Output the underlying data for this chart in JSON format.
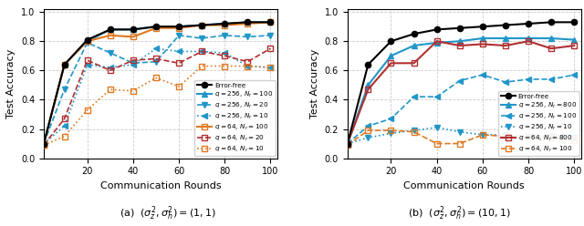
{
  "rounds": [
    1,
    10,
    20,
    30,
    40,
    50,
    60,
    70,
    80,
    90,
    100
  ],
  "left": {
    "error_free": [
      0.1,
      0.64,
      0.81,
      0.88,
      0.88,
      0.9,
      0.9,
      0.91,
      0.92,
      0.93,
      0.93
    ],
    "q256_Nr100": [
      0.1,
      0.64,
      0.8,
      0.88,
      0.88,
      0.9,
      0.9,
      0.91,
      0.92,
      0.93,
      0.93
    ],
    "q256_Nr20": [
      0.1,
      0.47,
      0.79,
      0.72,
      0.65,
      0.66,
      0.84,
      0.82,
      0.84,
      0.83,
      0.84
    ],
    "q256_Nr10": [
      0.1,
      0.22,
      0.64,
      0.62,
      0.64,
      0.75,
      0.73,
      0.73,
      0.72,
      0.63,
      0.62
    ],
    "q64_Nr100": [
      0.1,
      0.64,
      0.8,
      0.84,
      0.83,
      0.89,
      0.89,
      0.91,
      0.91,
      0.92,
      0.93
    ],
    "q64_Nr20": [
      0.09,
      0.27,
      0.67,
      0.6,
      0.67,
      0.68,
      0.65,
      0.73,
      0.7,
      0.66,
      0.75
    ],
    "q64_Nr10": [
      0.09,
      0.15,
      0.33,
      0.47,
      0.46,
      0.55,
      0.49,
      0.63,
      0.63,
      0.63,
      0.62
    ]
  },
  "right": {
    "error_free": [
      0.1,
      0.64,
      0.8,
      0.85,
      0.88,
      0.89,
      0.9,
      0.91,
      0.92,
      0.93,
      0.93
    ],
    "q256_Nr800": [
      0.1,
      0.5,
      0.7,
      0.77,
      0.79,
      0.8,
      0.82,
      0.82,
      0.82,
      0.82,
      0.81
    ],
    "q256_Nr100": [
      0.1,
      0.22,
      0.27,
      0.42,
      0.42,
      0.53,
      0.57,
      0.52,
      0.54,
      0.54,
      0.57
    ],
    "q256_Nr10": [
      0.1,
      0.14,
      0.17,
      0.19,
      0.21,
      0.18,
      0.16,
      0.16,
      0.15,
      0.15,
      0.14
    ],
    "q64_Nr800": [
      0.1,
      0.47,
      0.65,
      0.65,
      0.8,
      0.77,
      0.78,
      0.77,
      0.8,
      0.75,
      0.77
    ],
    "q64_Nr100": [
      0.09,
      0.19,
      0.19,
      0.18,
      0.1,
      0.1,
      0.16,
      0.15,
      0.15,
      0.14,
      0.12
    ]
  },
  "xlabel": "Communication Rounds",
  "ylabel": "Test Accuracy",
  "xticks": [
    20,
    40,
    60,
    80,
    100
  ],
  "yticks": [
    0,
    0.2,
    0.4,
    0.6,
    0.8,
    1.0
  ],
  "color_black": "#000000",
  "color_blue": "#2196C8",
  "color_orange": "#E07820",
  "color_darkred": "#B03030",
  "subtitle_left": "(a)  $(\\sigma_z^2, \\sigma_h^2) = (1, 1)$",
  "subtitle_right": "(b)  $(\\sigma_z^2, \\sigma_h^2) = (10, 1)$"
}
